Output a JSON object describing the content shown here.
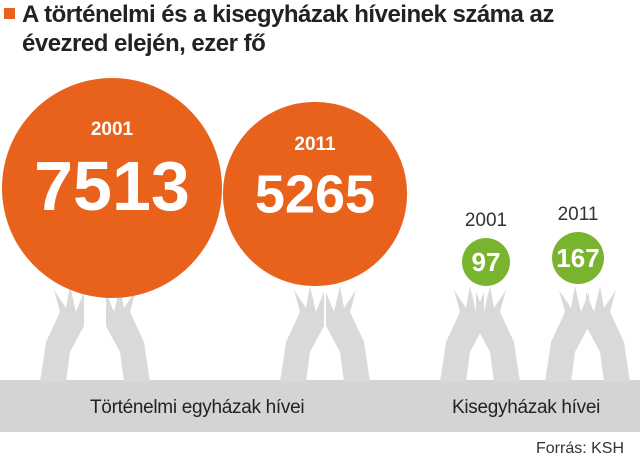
{
  "title": "A történelmi és a kisegyházak híveinek száma az évezred elején, ezer fő",
  "source": "Forrás: KSH",
  "colors": {
    "historic": "#e8621c",
    "small": "#79b42e",
    "band": "#d4d4d4",
    "hands": "#d9d9d9"
  },
  "chart_data": {
    "type": "bubble",
    "title": "A történelmi és a kisegyházak híveinek száma az évezred elején, ezer fő",
    "unit": "ezer fő",
    "categories": [
      "Történelmi egyházak hívei",
      "Kisegyházak hívei"
    ],
    "years": [
      "2001",
      "2011"
    ],
    "series": [
      {
        "name": "Történelmi egyházak hívei",
        "values": [
          7513,
          5265
        ]
      },
      {
        "name": "Kisegyházak hívei",
        "values": [
          97,
          167
        ]
      }
    ]
  }
}
